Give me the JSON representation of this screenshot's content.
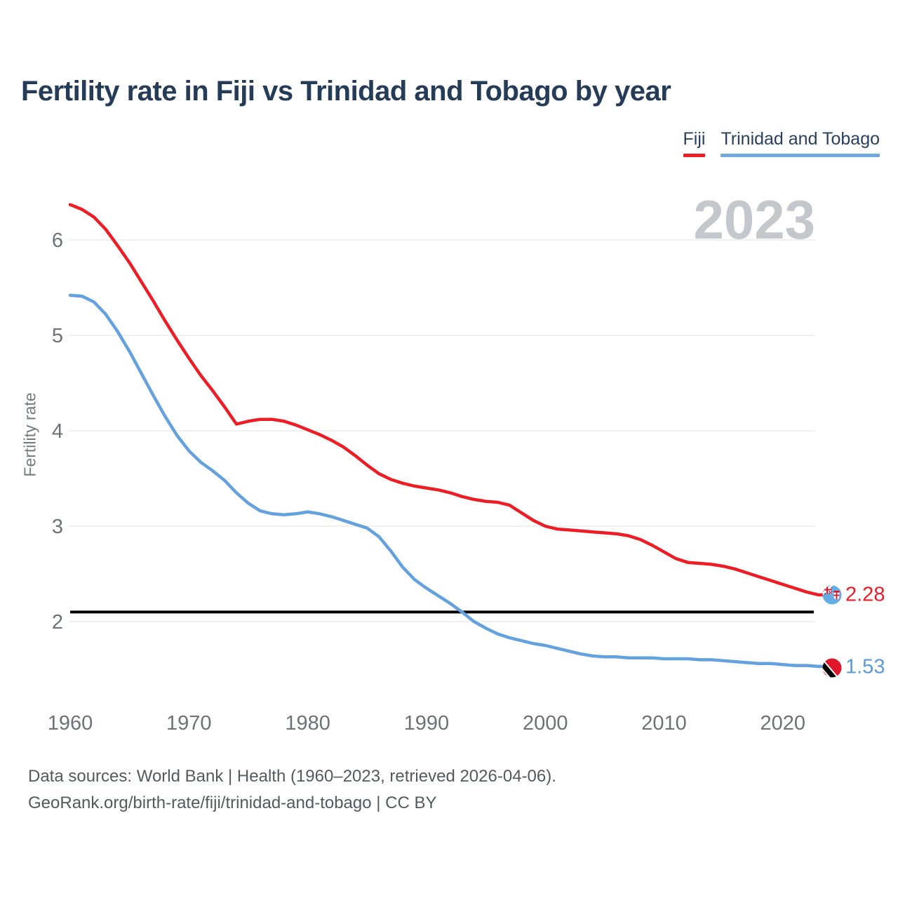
{
  "title": "Fertility rate in Fiji vs Trinidad and Tobago by year",
  "watermark_year": "2023",
  "legend": {
    "items": [
      {
        "label": "Fiji",
        "color": "#ee1c25"
      },
      {
        "label": "Trinidad and Tobago",
        "color": "#6fa9de"
      }
    ]
  },
  "end_labels": [
    {
      "series": "Fiji",
      "value": "2.28",
      "color": "#ee1c25",
      "flag": "fiji"
    },
    {
      "series": "Trinidad and Tobago",
      "value": "1.53",
      "color": "#5b9bd5",
      "flag": "trinidad-and-tobago"
    }
  ],
  "footer": {
    "line1": "Data sources: World Bank | Health (1960–2023, retrieved 2026-04-06).",
    "line2": "GeoRank.org/birth-rate/fiji/trinidad-and-tobago | CC BY"
  },
  "chart_data": {
    "type": "line",
    "title": "Fertility rate in Fiji vs Trinidad and Tobago by year",
    "xlabel": "",
    "ylabel": "Fertility rate",
    "x_start": 1960,
    "x_end": 2023,
    "x_ticks": [
      1960,
      1970,
      1980,
      1990,
      2000,
      2010,
      2020
    ],
    "y_ticks": [
      2,
      3,
      4,
      5,
      6
    ],
    "ylim": [
      1.35,
      6.5
    ],
    "grid": true,
    "legend_position": "top-right",
    "reference_line": {
      "value": 2.1,
      "color": "#000000"
    },
    "series": [
      {
        "name": "Fiji",
        "color": "#ee1c25",
        "end_value": 2.28,
        "values": [
          6.37,
          6.32,
          6.24,
          6.11,
          5.94,
          5.76,
          5.56,
          5.36,
          5.15,
          4.95,
          4.76,
          4.58,
          4.42,
          4.25,
          4.07,
          4.1,
          4.12,
          4.12,
          4.1,
          4.06,
          4.01,
          3.96,
          3.9,
          3.83,
          3.74,
          3.64,
          3.55,
          3.49,
          3.45,
          3.42,
          3.4,
          3.38,
          3.35,
          3.31,
          3.28,
          3.26,
          3.25,
          3.22,
          3.14,
          3.06,
          3.0,
          2.97,
          2.96,
          2.95,
          2.94,
          2.93,
          2.92,
          2.9,
          2.86,
          2.8,
          2.73,
          2.66,
          2.62,
          2.61,
          2.6,
          2.58,
          2.55,
          2.51,
          2.47,
          2.43,
          2.39,
          2.35,
          2.31,
          2.28
        ]
      },
      {
        "name": "Trinidad and Tobago",
        "color": "#64a1df",
        "end_value": 1.53,
        "values": [
          5.42,
          5.41,
          5.35,
          5.22,
          5.04,
          4.83,
          4.6,
          4.37,
          4.15,
          3.95,
          3.79,
          3.67,
          3.58,
          3.48,
          3.35,
          3.24,
          3.16,
          3.13,
          3.12,
          3.13,
          3.15,
          3.13,
          3.1,
          3.06,
          3.02,
          2.98,
          2.89,
          2.74,
          2.57,
          2.44,
          2.35,
          2.27,
          2.19,
          2.1,
          2.0,
          1.93,
          1.87,
          1.83,
          1.8,
          1.77,
          1.75,
          1.72,
          1.69,
          1.66,
          1.64,
          1.63,
          1.63,
          1.62,
          1.62,
          1.62,
          1.61,
          1.61,
          1.61,
          1.6,
          1.6,
          1.59,
          1.58,
          1.57,
          1.56,
          1.56,
          1.55,
          1.54,
          1.54,
          1.53
        ]
      }
    ]
  }
}
